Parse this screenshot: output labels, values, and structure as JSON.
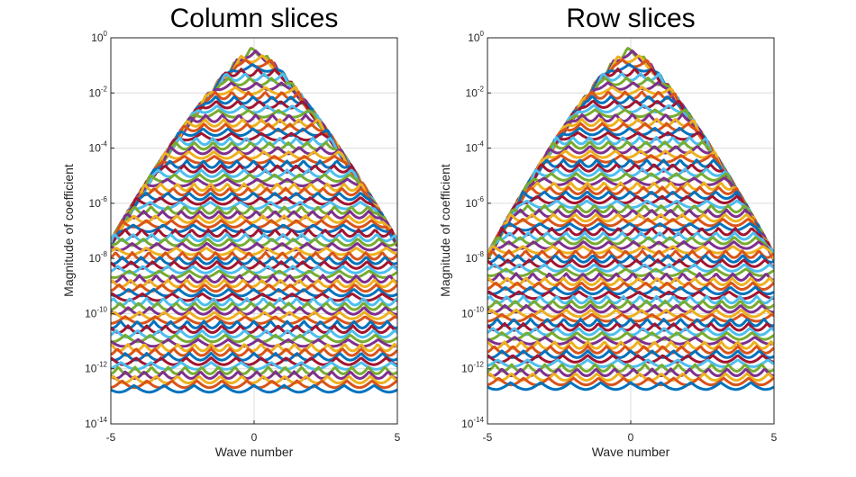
{
  "chart_data": [
    {
      "type": "line",
      "title": "Column slices",
      "xlabel": "Wave number",
      "ylabel": "Magnitude of coefficient",
      "xlim": [
        -5,
        5
      ],
      "ylim": [
        1e-14,
        1
      ],
      "yscale": "log",
      "grid": true,
      "x_ticks": [
        -5,
        0,
        5
      ],
      "x_tick_labels": [
        "-5",
        "0",
        "5"
      ],
      "y_ticks": [
        {
          "value": 1.0,
          "base": "10",
          "exp": "0"
        },
        {
          "value": 0.01,
          "base": "10",
          "exp": "-2"
        },
        {
          "value": 0.0001,
          "base": "10",
          "exp": "-4"
        },
        {
          "value": 1e-06,
          "base": "10",
          "exp": "-6"
        },
        {
          "value": 1e-08,
          "base": "10",
          "exp": "-8"
        },
        {
          "value": 1e-10,
          "base": "10",
          "exp": "-10"
        },
        {
          "value": 1e-12,
          "base": "10",
          "exp": "-12"
        },
        {
          "value": 1e-14,
          "base": "10",
          "exp": "-14"
        }
      ],
      "family": {
        "count": 75,
        "envelope_peak_log10_at_zero": -0.3,
        "envelope_edge_log10_at_pm5": -7.3,
        "lowest_curve_log10": -12.6,
        "color_cycle": [
          "#0072BD",
          "#D95319",
          "#EDB120",
          "#7E2F8E",
          "#77AC30",
          "#4DBEEE",
          "#A2142F"
        ]
      }
    },
    {
      "type": "line",
      "title": "Row slices",
      "xlabel": "Wave number",
      "ylabel": "Magnitude of coefficient",
      "xlim": [
        -5,
        5
      ],
      "ylim": [
        1e-14,
        1
      ],
      "yscale": "log",
      "grid": true,
      "x_ticks": [
        -5,
        0,
        5
      ],
      "x_tick_labels": [
        "-5",
        "0",
        "5"
      ],
      "y_ticks": [
        {
          "value": 1.0,
          "base": "10",
          "exp": "0"
        },
        {
          "value": 0.01,
          "base": "10",
          "exp": "-2"
        },
        {
          "value": 0.0001,
          "base": "10",
          "exp": "-4"
        },
        {
          "value": 1e-06,
          "base": "10",
          "exp": "-6"
        },
        {
          "value": 1e-08,
          "base": "10",
          "exp": "-8"
        },
        {
          "value": 1e-10,
          "base": "10",
          "exp": "-10"
        },
        {
          "value": 1e-12,
          "base": "10",
          "exp": "-12"
        },
        {
          "value": 1e-14,
          "base": "10",
          "exp": "-14"
        }
      ],
      "family": {
        "count": 75,
        "envelope_peak_log10_at_zero": -0.3,
        "envelope_edge_log10_at_pm5": -7.8,
        "lowest_curve_log10": -12.5,
        "color_cycle": [
          "#0072BD",
          "#D95319",
          "#EDB120",
          "#7E2F8E",
          "#77AC30",
          "#4DBEEE",
          "#A2142F"
        ]
      }
    }
  ]
}
